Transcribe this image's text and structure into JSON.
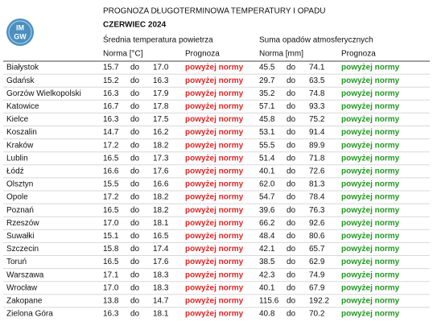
{
  "header": {
    "logo": [
      "IM",
      "GW"
    ],
    "title": "PROGNOZA DŁUGOTERMINOWA TEMPERATURY I OPADU",
    "month": "CZERWIEC 2024"
  },
  "table": {
    "groups": [
      "Średnia temperatura powietrza",
      "Suma opadów atmosferycznych"
    ],
    "subheaders": [
      "Norma [°C]",
      "Prognoza",
      "Norma [mm]",
      "Prognoza"
    ],
    "rows": [
      [
        "Białystok",
        "15.7",
        "do",
        "17.0",
        "powyżej normy",
        "45.5",
        "do",
        "74.1",
        "powyżej normy"
      ],
      [
        "Gdańsk",
        "15.2",
        "do",
        "16.3",
        "powyżej normy",
        "29.7",
        "do",
        "63.5",
        "powyżej normy"
      ],
      [
        "Gorzów Wielkopolski",
        "16.3",
        "do",
        "17.9",
        "powyżej normy",
        "35.2",
        "do",
        "74.8",
        "powyżej normy"
      ],
      [
        "Katowice",
        "16.7",
        "do",
        "17.8",
        "powyżej normy",
        "57.1",
        "do",
        "93.3",
        "powyżej normy"
      ],
      [
        "Kielce",
        "16.3",
        "do",
        "17.5",
        "powyżej normy",
        "45.8",
        "do",
        "75.2",
        "powyżej normy"
      ],
      [
        "Koszalin",
        "14.7",
        "do",
        "16.2",
        "powyżej normy",
        "53.1",
        "do",
        "91.4",
        "powyżej normy"
      ],
      [
        "Kraków",
        "17.2",
        "do",
        "18.2",
        "powyżej normy",
        "55.5",
        "do",
        "89.9",
        "powyżej normy"
      ],
      [
        "Lublin",
        "16.5",
        "do",
        "17.3",
        "powyżej normy",
        "51.4",
        "do",
        "71.8",
        "powyżej normy"
      ],
      [
        "Łódź",
        "16.6",
        "do",
        "17.6",
        "powyżej normy",
        "40.1",
        "do",
        "72.6",
        "powyżej normy"
      ],
      [
        "Olsztyn",
        "15.5",
        "do",
        "16.6",
        "powyżej normy",
        "62.0",
        "do",
        "81.3",
        "powyżej normy"
      ],
      [
        "Opole",
        "17.2",
        "do",
        "18.2",
        "powyżej normy",
        "54.7",
        "do",
        "78.4",
        "powyżej normy"
      ],
      [
        "Poznań",
        "16.5",
        "do",
        "18.2",
        "powyżej normy",
        "39.6",
        "do",
        "76.3",
        "powyżej normy"
      ],
      [
        "Rzeszów",
        "17.0",
        "do",
        "18.1",
        "powyżej normy",
        "66.2",
        "do",
        "92.6",
        "powyżej normy"
      ],
      [
        "Suwałki",
        "15.1",
        "do",
        "16.5",
        "powyżej normy",
        "48.4",
        "do",
        "80.6",
        "powyżej normy"
      ],
      [
        "Szczecin",
        "15.8",
        "do",
        "17.4",
        "powyżej normy",
        "42.1",
        "do",
        "65.7",
        "powyżej normy"
      ],
      [
        "Toruń",
        "16.5",
        "do",
        "17.6",
        "powyżej normy",
        "38.5",
        "do",
        "62.9",
        "powyżej normy"
      ],
      [
        "Warszawa",
        "17.1",
        "do",
        "18.3",
        "powyżej normy",
        "42.3",
        "do",
        "74.9",
        "powyżej normy"
      ],
      [
        "Wrocław",
        "17.0",
        "do",
        "18.3",
        "powyżej normy",
        "40.1",
        "do",
        "67.9",
        "powyżej normy"
      ],
      [
        "Zakopane",
        "13.8",
        "do",
        "14.7",
        "powyżej normy",
        "115.6",
        "do",
        "192.2",
        "powyżej normy"
      ],
      [
        "Zielona Góra",
        "16.3",
        "do",
        "18.1",
        "powyżej normy",
        "40.8",
        "do",
        "70.2",
        "powyżej normy"
      ]
    ]
  }
}
